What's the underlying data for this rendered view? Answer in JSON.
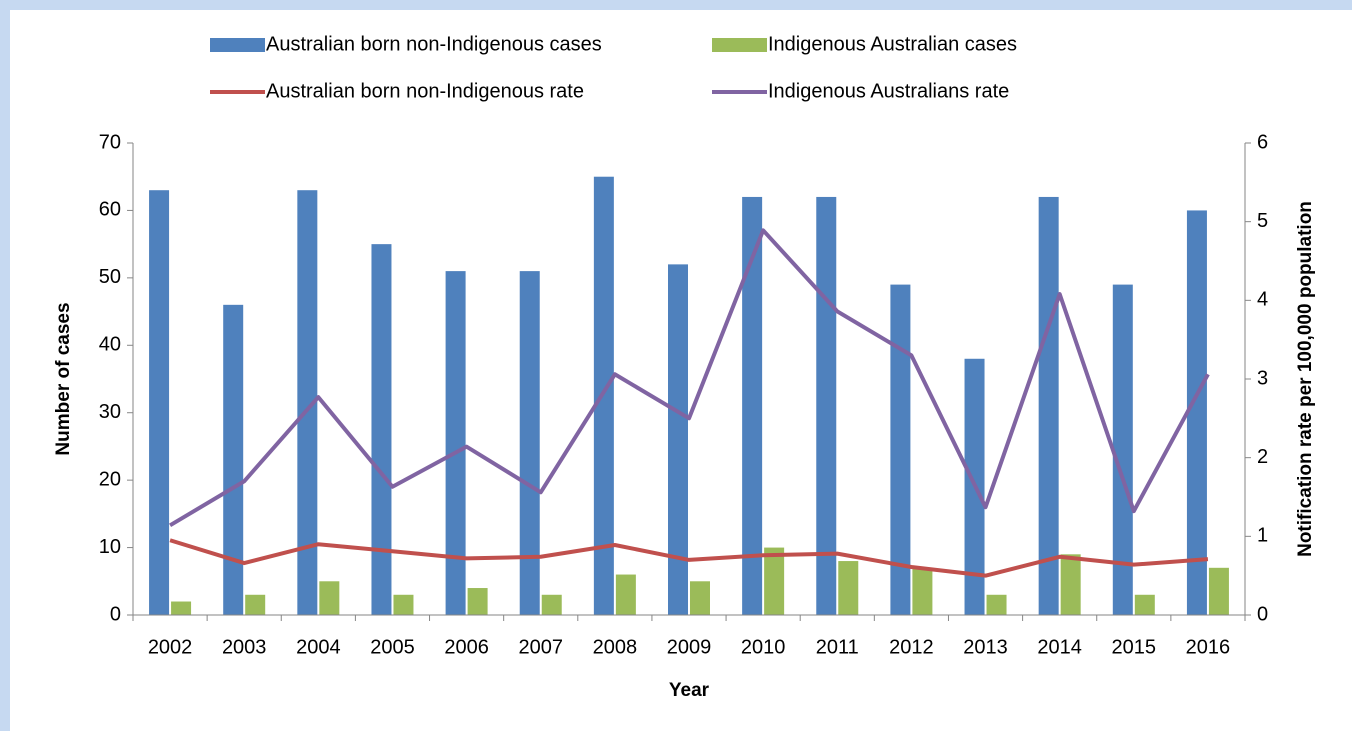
{
  "chart_data": {
    "type": "bar",
    "categories": [
      "2002",
      "2003",
      "2004",
      "2005",
      "2006",
      "2007",
      "2008",
      "2009",
      "2010",
      "2011",
      "2012",
      "2013",
      "2014",
      "2015",
      "2016"
    ],
    "series": [
      {
        "name": "Australian born non-Indigenous cases",
        "type": "bar",
        "color": "#4f81bd",
        "values": [
          63,
          46,
          63,
          55,
          51,
          51,
          65,
          52,
          62,
          62,
          49,
          38,
          62,
          49,
          60
        ]
      },
      {
        "name": "Indigenous Australian cases",
        "type": "bar",
        "color": "#9bbb59",
        "values": [
          2,
          3,
          5,
          3,
          4,
          3,
          6,
          5,
          10,
          8,
          7,
          3,
          9,
          3,
          7
        ]
      },
      {
        "name": "Australian born non-Indigenous rate",
        "type": "line",
        "axis": "y2",
        "color": "#c0504d",
        "values": [
          0.95,
          0.66,
          0.9,
          0.81,
          0.72,
          0.74,
          0.89,
          0.7,
          0.76,
          0.78,
          0.61,
          0.5,
          0.74,
          0.64,
          0.71
        ]
      },
      {
        "name": "Indigenous Australians rate",
        "type": "line",
        "axis": "y2",
        "color": "#8064a2",
        "values": [
          1.14,
          1.7,
          2.77,
          1.63,
          2.14,
          1.56,
          3.06,
          2.5,
          4.89,
          3.86,
          3.3,
          1.37,
          4.08,
          1.32,
          3.06
        ]
      }
    ],
    "y_label": "Number of cases",
    "y2_label": "Notification rate per 100,000 population",
    "x_label": "Year",
    "ylim": [
      0,
      70
    ],
    "yticks": [
      0,
      10,
      20,
      30,
      40,
      50,
      60,
      70
    ],
    "y2lim": [
      0,
      6
    ],
    "y2ticks": [
      0,
      1,
      2,
      3,
      4,
      5,
      6
    ],
    "grid": false,
    "legend": "top"
  }
}
